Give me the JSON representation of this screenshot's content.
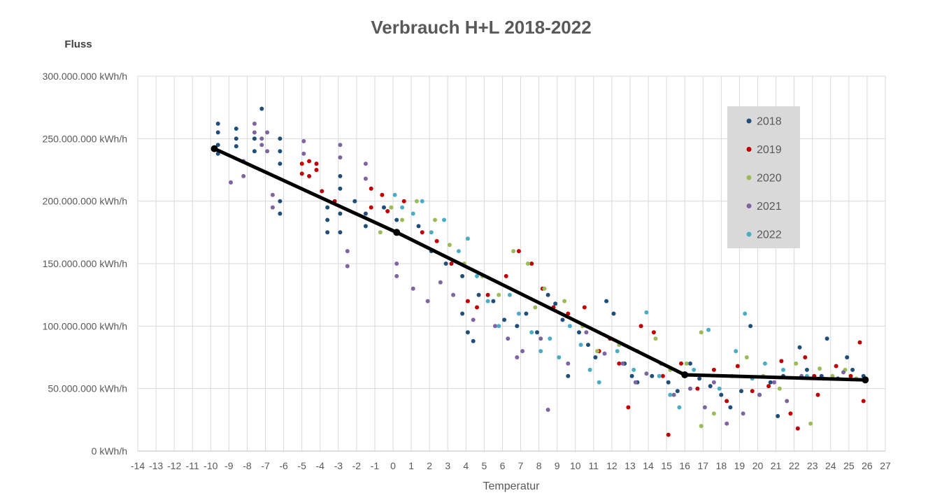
{
  "chart_data": {
    "type": "scatter",
    "title": "Verbrauch  H+L 2018-2022",
    "ylabel": "Fluss",
    "xlabel": "Temperatur",
    "xlim": [
      -14,
      27
    ],
    "ylim": [
      0,
      300000000
    ],
    "x_ticks": [
      "-14",
      "-13",
      "-12",
      "-11",
      "-10",
      "-9",
      "-8",
      "-7",
      "-6",
      "-5",
      "-4",
      "-3",
      "-2",
      "-1",
      "0",
      "1",
      "2",
      "3",
      "4",
      "5",
      "6",
      "7",
      "8",
      "9",
      "10",
      "11",
      "12",
      "13",
      "14",
      "15",
      "16",
      "17",
      "18",
      "19",
      "20",
      "21",
      "22",
      "23",
      "24",
      "25",
      "26",
      "27"
    ],
    "y_ticks": [
      {
        "value": 0,
        "label": "0 kWh/h"
      },
      {
        "value": 50000000,
        "label": "50.000.000 kWh/h"
      },
      {
        "value": 100000000,
        "label": "100.000.000 kWh/h"
      },
      {
        "value": 150000000,
        "label": "150.000.000 kWh/h"
      },
      {
        "value": 200000000,
        "label": "200.000.000 kWh/h"
      },
      {
        "value": 250000000,
        "label": "250.000.000 kWh/h"
      },
      {
        "value": 300000000,
        "label": "300.000.000 kWh/h"
      }
    ],
    "grid": true,
    "legend_position": "top-right",
    "series": [
      {
        "name": "2018",
        "color": "#1f4e79",
        "points": [
          [
            -9.6,
            262000000
          ],
          [
            -9.6,
            255000000
          ],
          [
            -9.6,
            245000000
          ],
          [
            -9.6,
            238000000
          ],
          [
            -8.6,
            258000000
          ],
          [
            -8.6,
            250000000
          ],
          [
            -8.6,
            244000000
          ],
          [
            -7.2,
            274000000
          ],
          [
            -7.6,
            250000000
          ],
          [
            -7.6,
            240000000
          ],
          [
            -6.2,
            250000000
          ],
          [
            -6.2,
            240000000
          ],
          [
            -6.2,
            230000000
          ],
          [
            -6.2,
            200000000
          ],
          [
            -6.2,
            190000000
          ],
          [
            -3.6,
            195000000
          ],
          [
            -3.6,
            185000000
          ],
          [
            -3.6,
            175000000
          ],
          [
            -2.9,
            220000000
          ],
          [
            -2.9,
            210000000
          ],
          [
            -2.9,
            190000000
          ],
          [
            -2.9,
            175000000
          ],
          [
            -2.1,
            200000000
          ],
          [
            -1.5,
            190000000
          ],
          [
            -1.5,
            180000000
          ],
          [
            -0.5,
            195000000
          ],
          [
            0.2,
            185000000
          ],
          [
            0.2,
            175000000
          ],
          [
            1.4,
            180000000
          ],
          [
            2.1,
            160000000
          ],
          [
            2.9,
            150000000
          ],
          [
            3.8,
            140000000
          ],
          [
            3.8,
            110000000
          ],
          [
            4.1,
            95000000
          ],
          [
            4.4,
            88000000
          ],
          [
            4.7,
            125000000
          ],
          [
            5.5,
            120000000
          ],
          [
            6.1,
            105000000
          ],
          [
            6.8,
            100000000
          ],
          [
            7.3,
            110000000
          ],
          [
            7.9,
            95000000
          ],
          [
            8.5,
            125000000
          ],
          [
            8.9,
            118000000
          ],
          [
            9.3,
            105000000
          ],
          [
            9.6,
            60000000
          ],
          [
            10.2,
            95000000
          ],
          [
            10.7,
            85000000
          ],
          [
            11.1,
            75000000
          ],
          [
            11.7,
            120000000
          ],
          [
            12.1,
            110000000
          ],
          [
            12.7,
            70000000
          ],
          [
            13.1,
            60000000
          ],
          [
            13.4,
            55000000
          ],
          [
            14.2,
            60000000
          ],
          [
            15.1,
            55000000
          ],
          [
            15.6,
            48000000
          ],
          [
            16.3,
            70000000
          ],
          [
            16.8,
            58000000
          ],
          [
            17.4,
            52000000
          ],
          [
            18.0,
            45000000
          ],
          [
            18.5,
            35000000
          ],
          [
            19.1,
            48000000
          ],
          [
            19.6,
            100000000
          ],
          [
            20.1,
            45000000
          ],
          [
            20.7,
            55000000
          ],
          [
            21.1,
            28000000
          ],
          [
            21.4,
            60000000
          ],
          [
            22.3,
            83000000
          ],
          [
            22.7,
            65000000
          ],
          [
            23.5,
            60000000
          ],
          [
            23.8,
            90000000
          ],
          [
            24.4,
            58000000
          ],
          [
            24.9,
            75000000
          ],
          [
            25.2,
            65000000
          ],
          [
            25.8,
            60000000
          ]
        ]
      },
      {
        "name": "2019",
        "color": "#c00000",
        "points": [
          [
            -5.0,
            230000000
          ],
          [
            -5.0,
            222000000
          ],
          [
            -4.6,
            232000000
          ],
          [
            -4.6,
            220000000
          ],
          [
            -4.2,
            230000000
          ],
          [
            -4.2,
            225000000
          ],
          [
            -3.9,
            208000000
          ],
          [
            -3.2,
            200000000
          ],
          [
            -1.2,
            210000000
          ],
          [
            -1.2,
            195000000
          ],
          [
            -0.6,
            205000000
          ],
          [
            -0.3,
            192000000
          ],
          [
            0.6,
            200000000
          ],
          [
            1.6,
            175000000
          ],
          [
            2.4,
            168000000
          ],
          [
            3.2,
            150000000
          ],
          [
            4.1,
            120000000
          ],
          [
            4.6,
            115000000
          ],
          [
            5.2,
            125000000
          ],
          [
            6.2,
            140000000
          ],
          [
            6.9,
            160000000
          ],
          [
            7.6,
            150000000
          ],
          [
            8.2,
            130000000
          ],
          [
            8.8,
            115000000
          ],
          [
            9.6,
            110000000
          ],
          [
            10.5,
            115000000
          ],
          [
            11.3,
            80000000
          ],
          [
            11.9,
            90000000
          ],
          [
            12.4,
            70000000
          ],
          [
            12.9,
            35000000
          ],
          [
            13.6,
            100000000
          ],
          [
            14.3,
            95000000
          ],
          [
            14.8,
            60000000
          ],
          [
            15.1,
            13000000
          ],
          [
            15.8,
            70000000
          ],
          [
            16.7,
            50000000
          ],
          [
            17.6,
            65000000
          ],
          [
            18.3,
            40000000
          ],
          [
            18.9,
            68000000
          ],
          [
            19.7,
            48000000
          ],
          [
            20.6,
            52000000
          ],
          [
            21.3,
            72000000
          ],
          [
            21.8,
            30000000
          ],
          [
            22.2,
            18000000
          ],
          [
            22.6,
            75000000
          ],
          [
            23.1,
            60000000
          ],
          [
            23.3,
            45000000
          ],
          [
            24.3,
            68000000
          ],
          [
            25.1,
            60000000
          ],
          [
            25.6,
            87000000
          ],
          [
            25.8,
            40000000
          ]
        ]
      },
      {
        "name": "2020",
        "color": "#9bbb59",
        "points": [
          [
            -0.7,
            175000000
          ],
          [
            -0.1,
            195000000
          ],
          [
            0.5,
            185000000
          ],
          [
            1.3,
            200000000
          ],
          [
            2.3,
            185000000
          ],
          [
            3.1,
            165000000
          ],
          [
            3.9,
            150000000
          ],
          [
            4.9,
            140000000
          ],
          [
            5.8,
            125000000
          ],
          [
            6.6,
            160000000
          ],
          [
            7.4,
            150000000
          ],
          [
            7.8,
            115000000
          ],
          [
            8.3,
            130000000
          ],
          [
            9.4,
            120000000
          ],
          [
            10.4,
            100000000
          ],
          [
            11.2,
            80000000
          ],
          [
            12.4,
            85000000
          ],
          [
            13.4,
            80000000
          ],
          [
            14.4,
            90000000
          ],
          [
            15.2,
            65000000
          ],
          [
            16.1,
            70000000
          ],
          [
            16.9,
            95000000
          ],
          [
            16.9,
            20000000
          ],
          [
            17.6,
            30000000
          ],
          [
            18.6,
            60000000
          ],
          [
            19.4,
            75000000
          ],
          [
            20.3,
            60000000
          ],
          [
            21.2,
            50000000
          ],
          [
            22.1,
            70000000
          ],
          [
            22.9,
            22000000
          ],
          [
            23.4,
            66000000
          ],
          [
            24.1,
            60000000
          ],
          [
            24.8,
            65000000
          ],
          [
            25.4,
            58000000
          ]
        ]
      },
      {
        "name": "2021",
        "color": "#8064a2",
        "points": [
          [
            -7.6,
            262000000
          ],
          [
            -7.6,
            255000000
          ],
          [
            -7.2,
            250000000
          ],
          [
            -7.2,
            245000000
          ],
          [
            -6.9,
            255000000
          ],
          [
            -6.9,
            240000000
          ],
          [
            -6.6,
            205000000
          ],
          [
            -6.6,
            195000000
          ],
          [
            -8.2,
            220000000
          ],
          [
            -8.2,
            232000000
          ],
          [
            -8.9,
            215000000
          ],
          [
            -4.9,
            248000000
          ],
          [
            -4.9,
            238000000
          ],
          [
            -2.9,
            245000000
          ],
          [
            -2.9,
            235000000
          ],
          [
            -2.5,
            160000000
          ],
          [
            -2.5,
            148000000
          ],
          [
            -1.5,
            230000000
          ],
          [
            -1.5,
            218000000
          ],
          [
            0.2,
            150000000
          ],
          [
            0.2,
            140000000
          ],
          [
            1.1,
            130000000
          ],
          [
            1.9,
            120000000
          ],
          [
            2.6,
            135000000
          ],
          [
            3.3,
            125000000
          ],
          [
            4.4,
            105000000
          ],
          [
            5.6,
            100000000
          ],
          [
            6.3,
            90000000
          ],
          [
            6.8,
            75000000
          ],
          [
            7.1,
            80000000
          ],
          [
            8.1,
            90000000
          ],
          [
            9.6,
            70000000
          ],
          [
            10.6,
            95000000
          ],
          [
            11.6,
            78000000
          ],
          [
            12.6,
            70000000
          ],
          [
            13.3,
            55000000
          ],
          [
            13.9,
            62000000
          ],
          [
            14.7,
            70000000
          ],
          [
            15.4,
            45000000
          ],
          [
            16.3,
            50000000
          ],
          [
            17.1,
            35000000
          ],
          [
            17.6,
            55000000
          ],
          [
            18.3,
            22000000
          ],
          [
            19.2,
            30000000
          ],
          [
            20.1,
            45000000
          ],
          [
            20.9,
            55000000
          ],
          [
            21.6,
            40000000
          ],
          [
            22.4,
            60000000
          ],
          [
            23.6,
            58000000
          ],
          [
            24.7,
            63000000
          ],
          [
            8.5,
            33000000
          ]
        ]
      },
      {
        "name": "2022",
        "color": "#4bacc6",
        "points": [
          [
            0.1,
            205000000
          ],
          [
            0.5,
            195000000
          ],
          [
            1.1,
            190000000
          ],
          [
            1.6,
            200000000
          ],
          [
            2.1,
            175000000
          ],
          [
            2.8,
            185000000
          ],
          [
            3.6,
            160000000
          ],
          [
            4.1,
            170000000
          ],
          [
            4.6,
            140000000
          ],
          [
            5.2,
            120000000
          ],
          [
            5.8,
            100000000
          ],
          [
            6.4,
            125000000
          ],
          [
            6.9,
            110000000
          ],
          [
            7.6,
            95000000
          ],
          [
            8.1,
            80000000
          ],
          [
            8.6,
            90000000
          ],
          [
            9.1,
            75000000
          ],
          [
            9.7,
            100000000
          ],
          [
            10.3,
            85000000
          ],
          [
            10.8,
            65000000
          ],
          [
            11.3,
            55000000
          ],
          [
            12.3,
            80000000
          ],
          [
            13.2,
            65000000
          ],
          [
            13.9,
            111000000
          ],
          [
            14.6,
            60000000
          ],
          [
            15.2,
            45000000
          ],
          [
            15.7,
            35000000
          ],
          [
            16.5,
            65000000
          ],
          [
            17.3,
            97000000
          ],
          [
            17.9,
            50000000
          ],
          [
            18.8,
            80000000
          ],
          [
            19.3,
            110000000
          ],
          [
            19.7,
            58000000
          ],
          [
            20.4,
            70000000
          ],
          [
            21.4,
            65000000
          ],
          [
            22.7,
            60000000
          ]
        ]
      }
    ],
    "trend_line": {
      "color": "#000000",
      "points": [
        [
          -9.8,
          242000000
        ],
        [
          0.2,
          175000000
        ],
        [
          16.0,
          61000000
        ],
        [
          25.9,
          57000000
        ]
      ]
    }
  }
}
